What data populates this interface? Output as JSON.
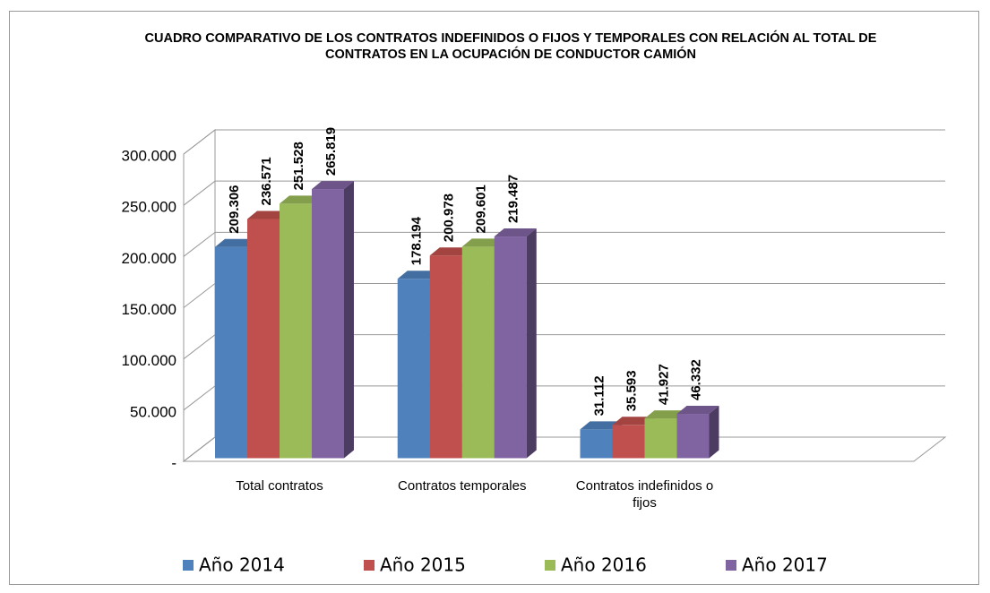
{
  "chart_data": {
    "type": "bar3d",
    "title": "CUADRO COMPARATIVO DE LOS CONTRATOS INDEFINIDOS O FIJOS Y TEMPORALES CON RELACIÓN AL TOTAL DE CONTRATOS EN LA OCUPACIÓN DE CONDUCTOR CAMIÓN",
    "categories": [
      "Total contratos",
      "Contratos temporales",
      "Contratos indefinidos o fijos",
      null
    ],
    "series": [
      {
        "name": "Año 2014",
        "color": "#4f81bd",
        "values": [
          209306,
          178194,
          31112,
          null
        ],
        "value_labels": [
          "209.306",
          "178.194",
          "31.112",
          null
        ]
      },
      {
        "name": "Año 2015",
        "color": "#c0504d",
        "values": [
          236571,
          200978,
          35593,
          null
        ],
        "value_labels": [
          "236.571",
          "200.978",
          "35.593",
          null
        ]
      },
      {
        "name": "Año 2016",
        "color": "#9bbb59",
        "values": [
          251528,
          209601,
          41927,
          null
        ],
        "value_labels": [
          "251.528",
          "209.601",
          "41.927",
          null
        ]
      },
      {
        "name": "Año 2017",
        "color": "#8064a2",
        "values": [
          265819,
          219487,
          46332,
          null
        ],
        "value_labels": [
          "265.819",
          "219.487",
          "46.332",
          null
        ]
      }
    ],
    "ylim": [
      0,
      300000
    ],
    "yticks": [
      {
        "value": 0,
        "label": "-"
      },
      {
        "value": 50000,
        "label": "50.000"
      },
      {
        "value": 100000,
        "label": "100.000"
      },
      {
        "value": 150000,
        "label": "150.000"
      },
      {
        "value": 200000,
        "label": "200.000"
      },
      {
        "value": 250000,
        "label": "250.000"
      },
      {
        "value": 300000,
        "label": "300.000"
      }
    ],
    "grid": true,
    "legend": "bottom"
  }
}
